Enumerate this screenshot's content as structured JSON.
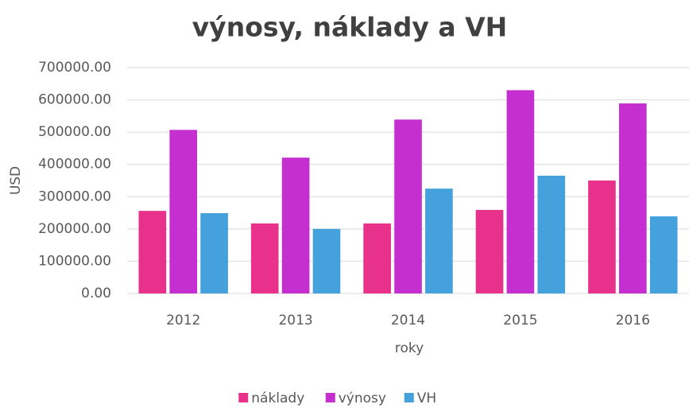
{
  "chart_data": {
    "type": "bar",
    "title": "výnosy, náklady a VH",
    "x_label": "roky",
    "y_label": "USD",
    "categories": [
      "2012",
      "2013",
      "2014",
      "2015",
      "2016"
    ],
    "series": [
      {
        "name": "náklady",
        "color": "#e8318a",
        "values": [
          256000,
          217000,
          217000,
          259000,
          350000
        ]
      },
      {
        "name": "výnosy",
        "color": "#c52fcf",
        "values": [
          507000,
          421000,
          539000,
          630000,
          589000
        ]
      },
      {
        "name": "VH",
        "color": "#45a1dc",
        "values": [
          249000,
          200000,
          325000,
          365000,
          239000
        ]
      }
    ],
    "ylim": [
      0,
      700000
    ],
    "yticks": [
      {
        "value": 0,
        "label": "0.00"
      },
      {
        "value": 100000,
        "label": "100000.00"
      },
      {
        "value": 200000,
        "label": "200000.00"
      },
      {
        "value": 300000,
        "label": "300000.00"
      },
      {
        "value": 400000,
        "label": "400000.00"
      },
      {
        "value": 500000,
        "label": "500000.00"
      },
      {
        "value": 600000,
        "label": "600000.00"
      },
      {
        "value": 700000,
        "label": "700000.00"
      }
    ],
    "grid": true,
    "legend": "bottom"
  }
}
